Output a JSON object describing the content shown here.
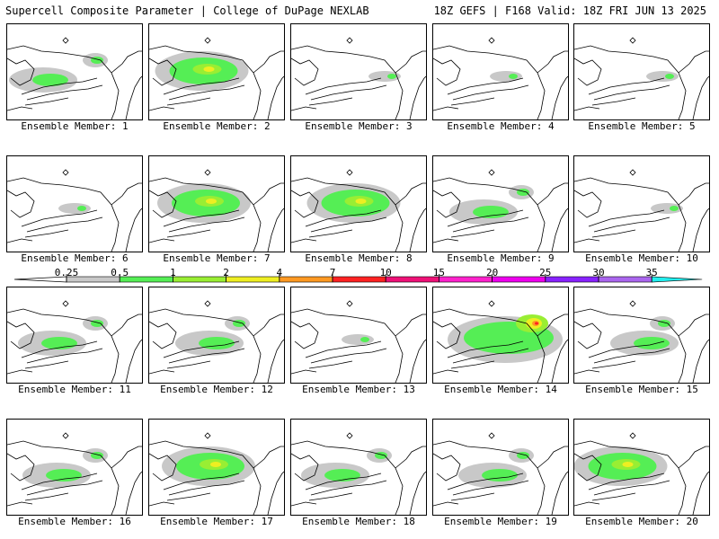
{
  "header": {
    "left": "Supercell Composite Parameter | College of DuPage NEXLAB",
    "right": "18Z GEFS | F168 Valid: 18Z FRI JUN 13 2025"
  },
  "legend": {
    "labels": [
      "0.25",
      "0.5",
      "1",
      "2",
      "4",
      "7",
      "10",
      "15",
      "20",
      "25",
      "30",
      "35"
    ],
    "colors": [
      "#c8c8c8",
      "#55ee55",
      "#99ee33",
      "#eeee22",
      "#ff9922",
      "#ff2222",
      "#ee1177",
      "#ff22cc",
      "#ee00ee",
      "#8822ff",
      "#aa66ee",
      "#22eeee"
    ]
  },
  "panels": [
    {
      "label": "Ensemble Member: 1",
      "intensity": "light"
    },
    {
      "label": "Ensemble Member: 2",
      "intensity": "moderate"
    },
    {
      "label": "Ensemble Member: 3",
      "intensity": "minimal"
    },
    {
      "label": "Ensemble Member: 4",
      "intensity": "minimal"
    },
    {
      "label": "Ensemble Member: 5",
      "intensity": "minimal"
    },
    {
      "label": "Ensemble Member: 6",
      "intensity": "minimal"
    },
    {
      "label": "Ensemble Member: 7",
      "intensity": "moderate"
    },
    {
      "label": "Ensemble Member: 8",
      "intensity": "moderate"
    },
    {
      "label": "Ensemble Member: 9",
      "intensity": "light"
    },
    {
      "label": "Ensemble Member: 10",
      "intensity": "minimal"
    },
    {
      "label": "Ensemble Member: 11",
      "intensity": "light"
    },
    {
      "label": "Ensemble Member: 12",
      "intensity": "light"
    },
    {
      "label": "Ensemble Member: 13",
      "intensity": "minimal"
    },
    {
      "label": "Ensemble Member: 14",
      "intensity": "strong"
    },
    {
      "label": "Ensemble Member: 15",
      "intensity": "light"
    },
    {
      "label": "Ensemble Member: 16",
      "intensity": "light"
    },
    {
      "label": "Ensemble Member: 17",
      "intensity": "moderate"
    },
    {
      "label": "Ensemble Member: 18",
      "intensity": "light"
    },
    {
      "label": "Ensemble Member: 19",
      "intensity": "light"
    },
    {
      "label": "Ensemble Member: 20",
      "intensity": "moderate"
    }
  ]
}
